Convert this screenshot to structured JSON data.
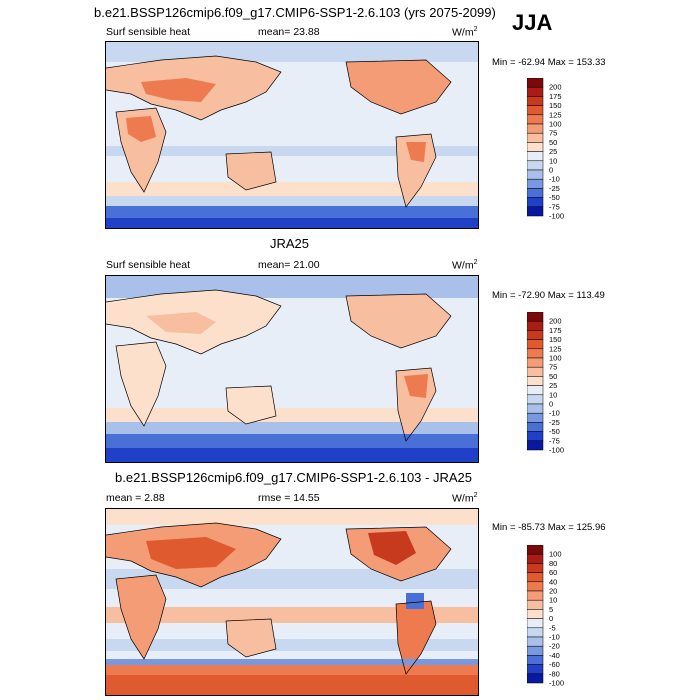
{
  "season": "JJA",
  "panels": [
    {
      "title": "b.e21.BSSP126cmip6.f09_g17.CMIP6-SSP1-2.6.103 (yrs 2075-2099)",
      "left_label": "Surf sensible heat",
      "center_label": "mean=  23.88",
      "units_base": "W/m",
      "units_exp": "2",
      "minmax": "Min = -62.94 Max = 153.33",
      "colorbar": [
        "200",
        "175",
        "150",
        "125",
        "100",
        "75",
        "50",
        "25",
        "10",
        "0",
        "-10",
        "-25",
        "-50",
        "-75",
        "-100"
      ]
    },
    {
      "title": "JRA25",
      "left_label": "Surf sensible heat",
      "center_label": "mean=  21.00",
      "units_base": "W/m",
      "units_exp": "2",
      "minmax": "Min = -72.90 Max = 113.49",
      "colorbar": [
        "200",
        "175",
        "150",
        "125",
        "100",
        "75",
        "50",
        "25",
        "10",
        "0",
        "-10",
        "-25",
        "-50",
        "-75",
        "-100"
      ]
    },
    {
      "title": "b.e21.BSSP126cmip6.f09_g17.CMIP6-SSP1-2.6.103 - JRA25",
      "left_label": "mean =   2.88",
      "center_label": "rmse =  14.55",
      "units_base": "W/m",
      "units_exp": "2",
      "minmax": "Min = -85.73 Max = 125.96",
      "colorbar": [
        "100",
        "80",
        "60",
        "40",
        "20",
        "10",
        "5",
        "0",
        "-5",
        "-10",
        "-20",
        "-40",
        "-60",
        "-80",
        "-100"
      ]
    }
  ],
  "colors": {
    "cb": [
      "#7a0a0a",
      "#a81e14",
      "#c83a1e",
      "#e05a30",
      "#ee7a50",
      "#f49c76",
      "#f8bea0",
      "#fde0cc",
      "#e8eef8",
      "#c8d8f0",
      "#a8c0ea",
      "#7898e0",
      "#4870d6",
      "#2040c8",
      "#0818a0"
    ]
  },
  "chart_data": [
    {
      "type": "heatmap",
      "title": "b.e21.BSSP126cmip6.f09_g17.CMIP6-SSP1-2.6.103 (yrs 2075-2099)",
      "variable": "Surf sensible heat",
      "units": "W/m2",
      "mean": 23.88,
      "min": -62.94,
      "max": 153.33,
      "levels": [
        -100,
        -75,
        -50,
        -25,
        -10,
        0,
        10,
        25,
        50,
        75,
        100,
        125,
        150,
        175,
        200
      ]
    },
    {
      "type": "heatmap",
      "title": "JRA25",
      "variable": "Surf sensible heat",
      "units": "W/m2",
      "mean": 21.0,
      "min": -72.9,
      "max": 113.49,
      "levels": [
        -100,
        -75,
        -50,
        -25,
        -10,
        0,
        10,
        25,
        50,
        75,
        100,
        125,
        150,
        175,
        200
      ]
    },
    {
      "type": "heatmap",
      "title": "b.e21.BSSP126cmip6.f09_g17.CMIP6-SSP1-2.6.103 - JRA25",
      "units": "W/m2",
      "mean": 2.88,
      "rmse": 14.55,
      "min": -85.73,
      "max": 125.96,
      "levels": [
        -100,
        -80,
        -60,
        -40,
        -20,
        -10,
        -5,
        0,
        5,
        10,
        20,
        40,
        60,
        80,
        100
      ]
    }
  ]
}
